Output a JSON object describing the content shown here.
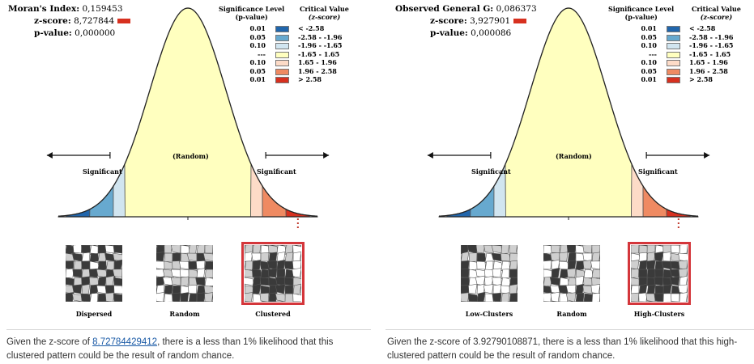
{
  "left": {
    "stats": {
      "index_label": "Moran's Index:",
      "index_value": "0,159453",
      "z_label": "z-score:",
      "z_value": "8,727844",
      "p_label": "p-value:",
      "p_value": "0,000000"
    },
    "legend": {
      "sig_header_1": "Significance Level",
      "sig_header_2": "(p-value)",
      "cv_header_1": "Critical Value",
      "cv_header_2": "(z-score)",
      "rows": [
        {
          "p": "0.01",
          "cv": "< -2.58",
          "color": "#2166ac"
        },
        {
          "p": "0.05",
          "cv": "-2.58 - -1.96",
          "color": "#67a9cf"
        },
        {
          "p": "0.10",
          "cv": "-1.96 - -1.65",
          "color": "#d1e5f0"
        },
        {
          "p": "---",
          "cv": "-1.65 - 1.65",
          "color": "#ffffbf"
        },
        {
          "p": "0.10",
          "cv": "1.65 - 1.96",
          "color": "#fddbc7"
        },
        {
          "p": "0.05",
          "cv": "1.96 - 2.58",
          "color": "#ef8a62"
        },
        {
          "p": "0.01",
          "cv": "> 2.58",
          "color": "#d7301f"
        }
      ]
    },
    "curve": {
      "sig_left": "Significant",
      "random": "(Random)",
      "sig_right": "Significant"
    },
    "thumbs": [
      "Dispersed",
      "Random",
      "Clustered"
    ],
    "selected_thumb": "Clustered",
    "description": {
      "before": "Given the z-score of ",
      "link": "8.72784429412",
      "after": ", there is a less than 1% likelihood that this clustered pattern could be the result of random chance."
    }
  },
  "right": {
    "stats": {
      "index_label": "Observed General G:",
      "index_value": "0,086373",
      "z_label": "z-score:",
      "z_value": "3,927901",
      "p_label": "p-value:",
      "p_value": "0,000086"
    },
    "legend": {
      "sig_header_1": "Significance Level",
      "sig_header_2": "(p-value)",
      "cv_header_1": "Critical Value",
      "cv_header_2": "(z-score)",
      "rows": [
        {
          "p": "0.01",
          "cv": "< -2.58",
          "color": "#2166ac"
        },
        {
          "p": "0.05",
          "cv": "-2.58 - -1.96",
          "color": "#67a9cf"
        },
        {
          "p": "0.10",
          "cv": "-1.96 - -1.65",
          "color": "#d1e5f0"
        },
        {
          "p": "---",
          "cv": "-1.65 - 1.65",
          "color": "#ffffbf"
        },
        {
          "p": "0.10",
          "cv": "1.65 - 1.96",
          "color": "#fddbc7"
        },
        {
          "p": "0.05",
          "cv": "1.96 - 2.58",
          "color": "#ef8a62"
        },
        {
          "p": "0.01",
          "cv": "> 2.58",
          "color": "#d7301f"
        }
      ]
    },
    "curve": {
      "sig_left": "Significant",
      "random": "(Random)",
      "sig_right": "Significant"
    },
    "thumbs": [
      "Low-Clusters",
      "Random",
      "High-Clusters"
    ],
    "selected_thumb": "High-Clusters",
    "description": {
      "before": "Given the z-score of 3.92790108871, there is a less than 1% likelihood that this high-clustered pattern could be the result of random chance.",
      "link": "",
      "after": ""
    }
  }
}
